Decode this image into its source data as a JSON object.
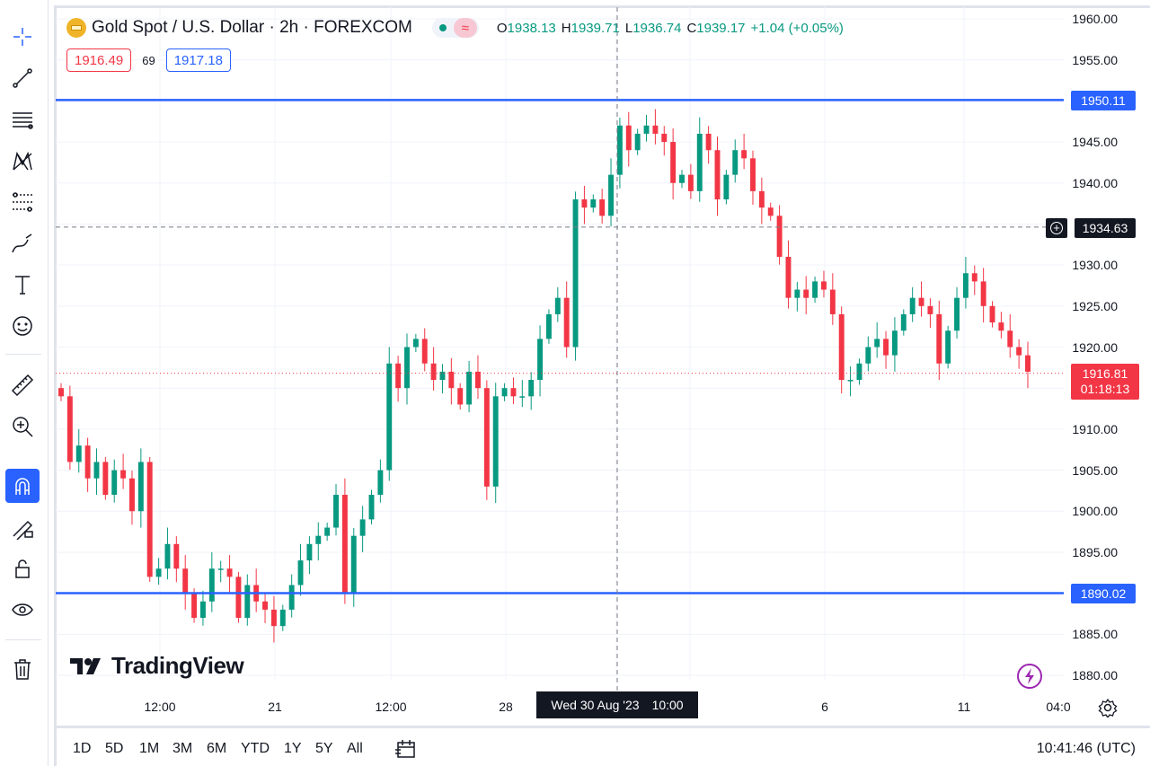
{
  "header": {
    "symbol": "Gold Spot / U.S. Dollar · 2h · FOREXCOM",
    "status_wave": "≈",
    "ohlc": [
      {
        "key": "O",
        "value": "1938.13"
      },
      {
        "key": "H",
        "value": "1939.71"
      },
      {
        "key": "L",
        "value": "1936.74"
      },
      {
        "key": "C",
        "value": "1939.17"
      }
    ],
    "change": "+1.04 (+0.05%)"
  },
  "quote": {
    "bid": "1916.49",
    "spread": "69",
    "ask": "1917.18"
  },
  "price_axis": {
    "ticks": [
      "1960.00",
      "1955.00",
      "1945.00",
      "1940.00",
      "1930.00",
      "1925.00",
      "1920.00",
      "1910.00",
      "1905.00",
      "1900.00",
      "1895.00",
      "1885.00",
      "1880.00"
    ],
    "tick_values": [
      1960,
      1955,
      1945,
      1940,
      1930,
      1925,
      1920,
      1910,
      1905,
      1900,
      1895,
      1885,
      1880
    ],
    "upper_line_label": "1950.11",
    "lower_line_label": "1890.02",
    "crosshair_label": "1934.63",
    "last_price": "1916.81",
    "countdown": "01:18:13"
  },
  "time_axis": {
    "labels": [
      "12:00",
      "21",
      "12:00",
      "28",
      "6",
      "11",
      "04:0"
    ],
    "cursor_date": "Wed 30 Aug '23",
    "cursor_time": "10:00"
  },
  "watermark": "TradingView",
  "bottom_bar": {
    "ranges": [
      "1D",
      "5D",
      "1M",
      "3M",
      "6M",
      "YTD",
      "1Y",
      "5Y",
      "All"
    ],
    "clock": "10:41:46 (UTC)"
  },
  "colors": {
    "up": "#089981",
    "down": "#f23645",
    "hline": "#2962ff",
    "grid": "#f0f3fa"
  },
  "chart_data": {
    "type": "candlestick",
    "ylim": [
      1878,
      1962
    ],
    "horizontal_lines": [
      1950.11,
      1890.02
    ],
    "crosshair_price": 1934.63,
    "last_price": 1916.81,
    "close_path": [
      1914,
      1906,
      1908,
      1904,
      1906,
      1902,
      1905,
      1904,
      1900,
      1906,
      1892,
      1893,
      1896,
      1893,
      1890,
      1887,
      1889,
      1893,
      1893,
      1892,
      1887,
      1891,
      1889,
      1888,
      1886,
      1888,
      1891,
      1894,
      1896,
      1897,
      1898,
      1902,
      1890,
      1897,
      1899,
      1902,
      1905,
      1918,
      1915,
      1920,
      1921,
      1918,
      1916,
      1917,
      1915,
      1913,
      1917,
      1915,
      1903,
      1914,
      1915,
      1914,
      1914,
      1916,
      1921,
      1924,
      1926,
      1920,
      1938,
      1937,
      1938,
      1936,
      1941,
      1947,
      1944,
      1946,
      1947,
      1946,
      1945,
      1940,
      1941,
      1939,
      1946,
      1944,
      1938,
      1941,
      1944,
      1943,
      1939,
      1937,
      1936,
      1931,
      1926,
      1927,
      1926,
      1928,
      1927,
      1924,
      1916,
      1916,
      1918,
      1920,
      1921,
      1919,
      1922,
      1924,
      1926,
      1925,
      1924,
      1918,
      1922,
      1926,
      1929,
      1928,
      1925,
      1923,
      1922,
      1920,
      1919,
      1917
    ]
  }
}
